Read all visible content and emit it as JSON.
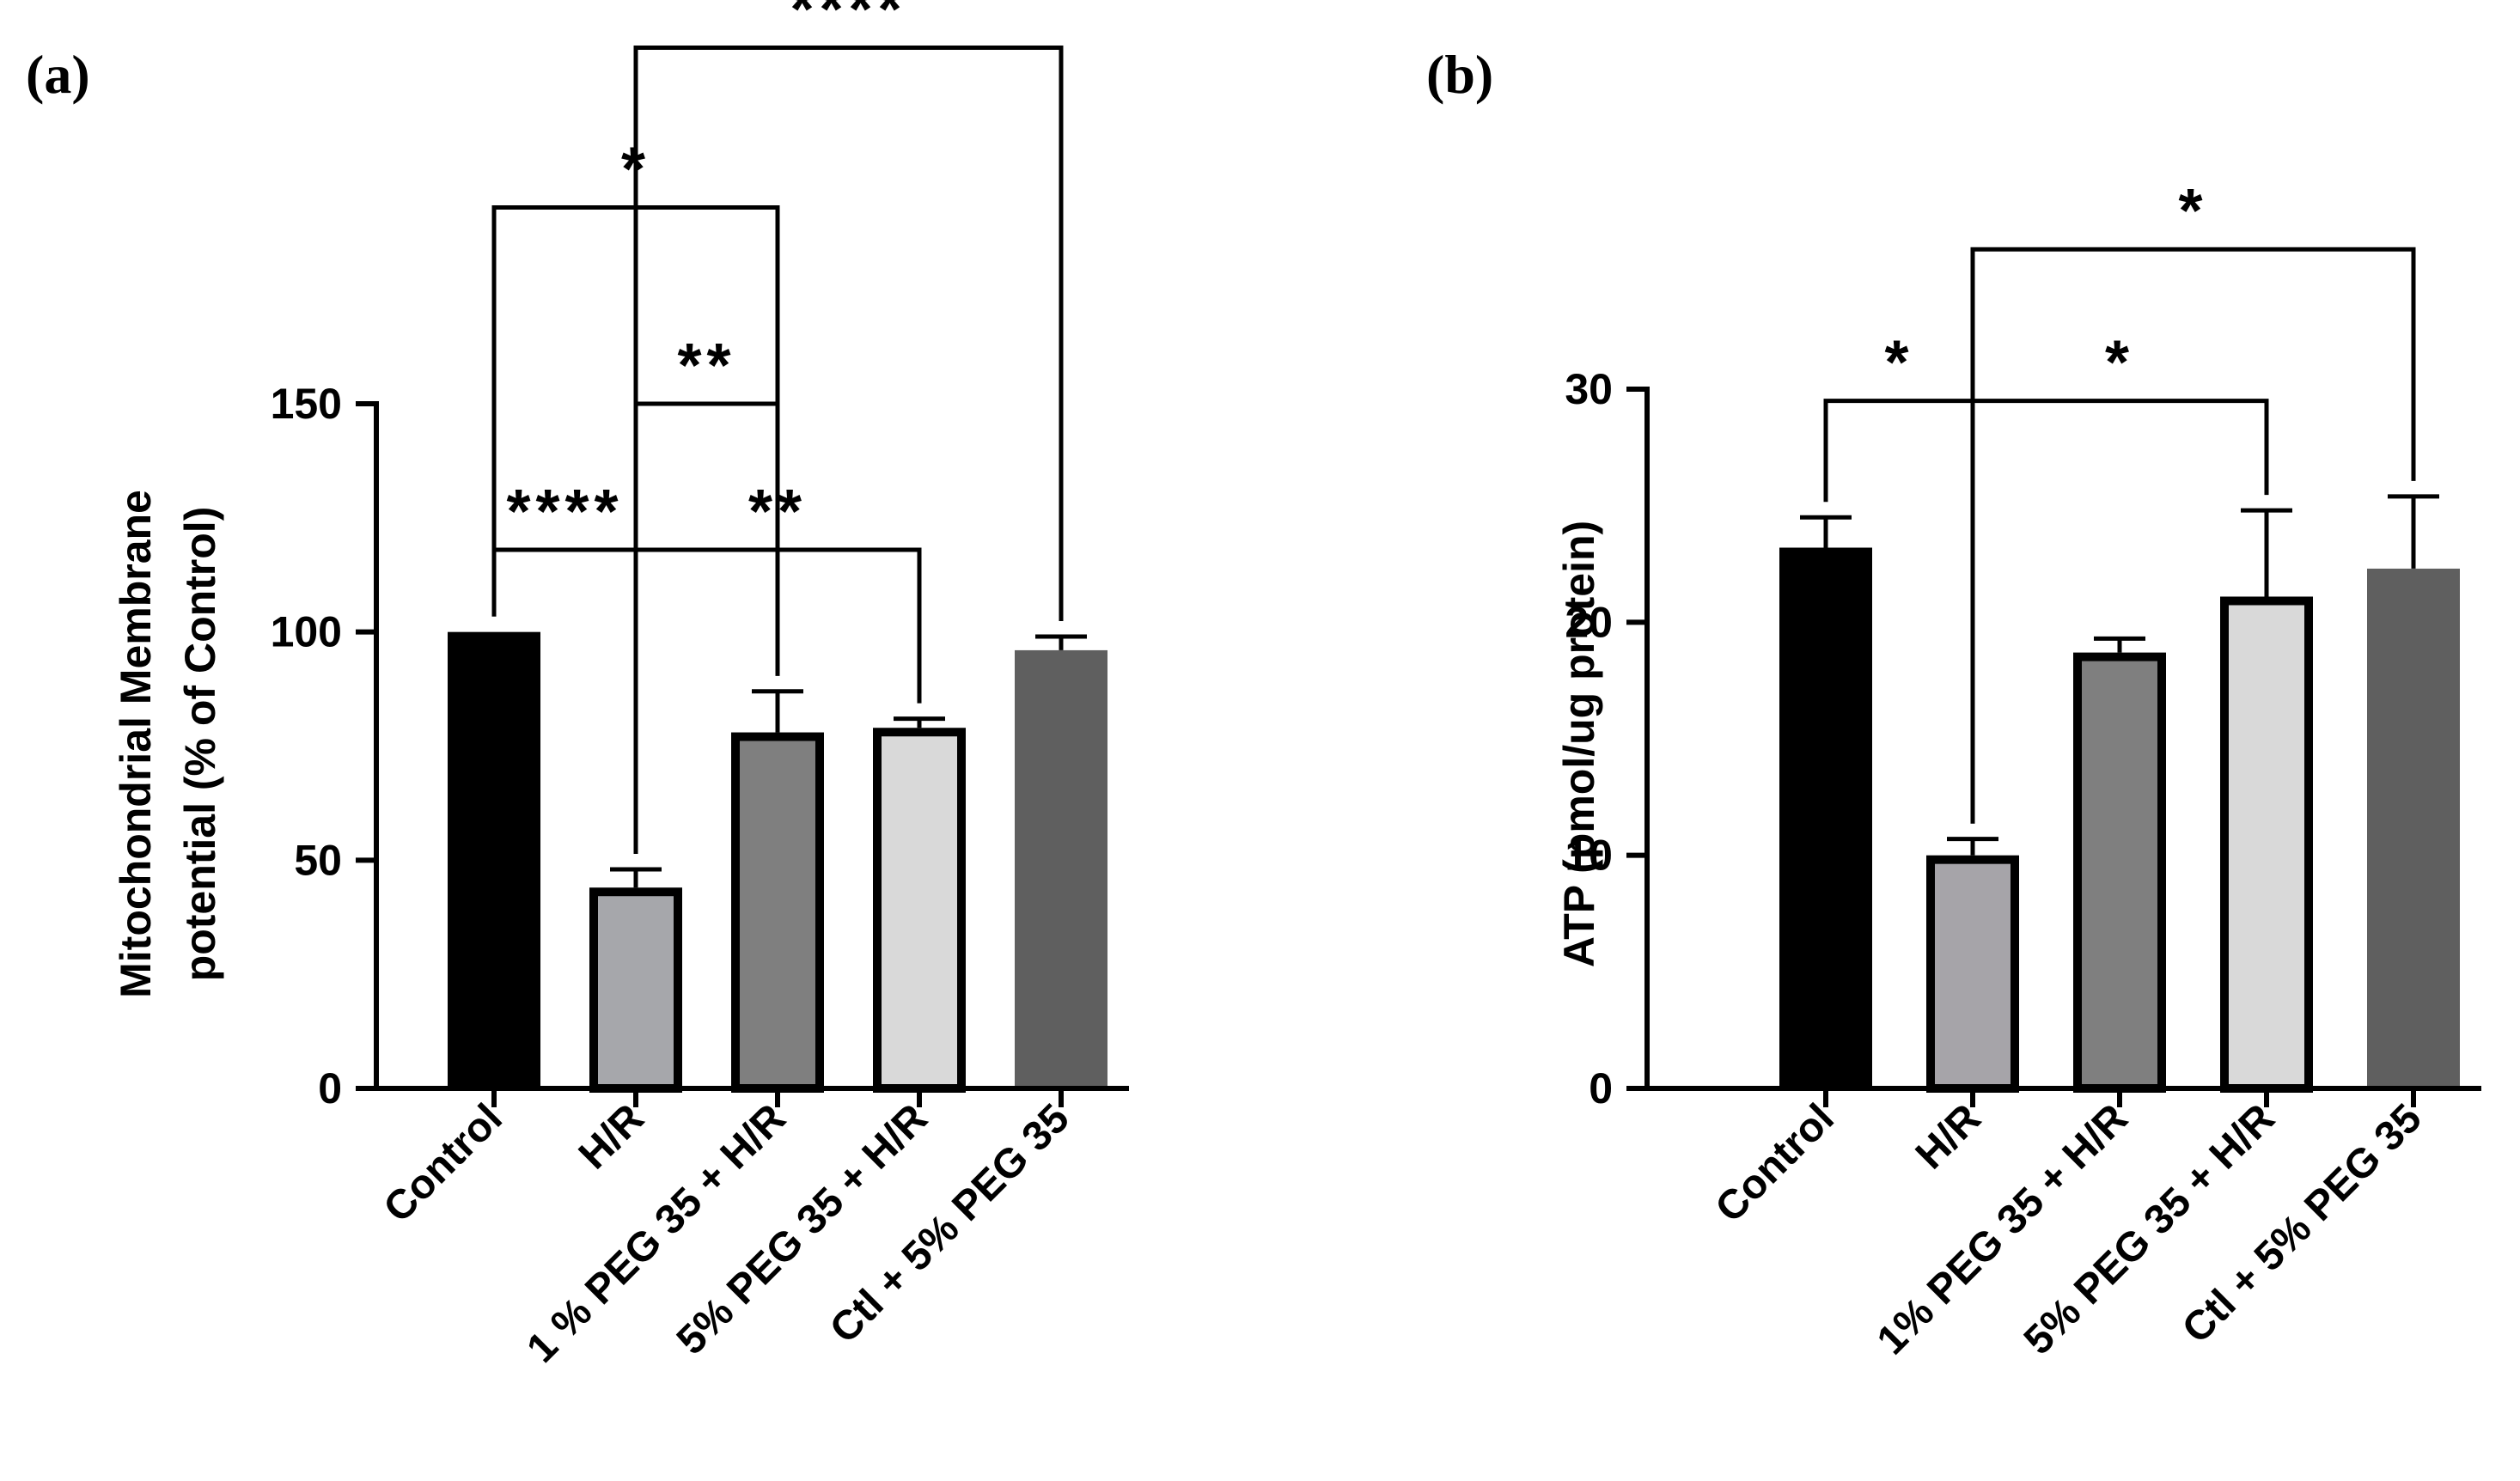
{
  "chart_data": [
    {
      "type": "bar",
      "panel_label": "(a)",
      "title": "",
      "xlabel": "",
      "ylabel_lines": [
        "Mitochondrial Membrane",
        "potential (% of Control)"
      ],
      "categories": [
        "Control",
        "H/R",
        "1 % PEG 35 + H/R",
        "5% PEG 35 + H/R",
        "Ctl + 5% PEG 35"
      ],
      "values": [
        100,
        44,
        78,
        79,
        96
      ],
      "errors": [
        0,
        4,
        9,
        2,
        3
      ],
      "bar_colors": [
        "#000000",
        "#a6a7ab",
        "#7f7f7f",
        "#d9d9d9",
        "#5f5f5f"
      ],
      "bar_outlined": [
        false,
        true,
        true,
        true,
        false
      ],
      "ylim": [
        0,
        150
      ],
      "yticks": [
        0,
        50,
        100,
        150
      ],
      "significance": [
        {
          "from": 1,
          "to": 4,
          "label": "****",
          "level": 228
        },
        {
          "from": 0,
          "to": 2,
          "label": "*",
          "level": 193
        },
        {
          "from": 1,
          "to": 2,
          "label": "**",
          "level": 150
        },
        {
          "from": 0,
          "to": 1,
          "label": "****",
          "level": 118
        },
        {
          "from": 1,
          "to": 3,
          "label": "**",
          "level": 118
        }
      ]
    },
    {
      "type": "bar",
      "panel_label": "(b)",
      "title": "",
      "xlabel": "",
      "ylabel_lines": [
        "ATP (pmol/ug protein)"
      ],
      "categories": [
        "Control",
        "H/R",
        "1% PEG 35 + H/R",
        "5% PEG 35 + H/R",
        "Ctl + 5% PEG 35"
      ],
      "values": [
        23.2,
        10,
        18.7,
        21.1,
        22.3
      ],
      "errors": [
        1.3,
        0.7,
        0.6,
        3.7,
        3.1
      ],
      "bar_colors": [
        "#000000",
        "#a6a4a9",
        "#7f7f7f",
        "#d9d9d9",
        "#5f5f5f"
      ],
      "bar_outlined": [
        false,
        true,
        true,
        true,
        false
      ],
      "ylim": [
        0,
        30
      ],
      "yticks": [
        0,
        10,
        20,
        30
      ],
      "significance": [
        {
          "from": 1,
          "to": 4,
          "label": "*",
          "level": 36
        },
        {
          "from": 0,
          "to": 1,
          "label": "*",
          "level": 29.5
        },
        {
          "from": 1,
          "to": 3,
          "label": "*",
          "level": 29.5
        }
      ]
    }
  ]
}
